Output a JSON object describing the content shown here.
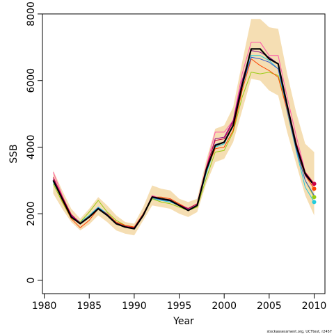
{
  "chart_data": {
    "type": "line",
    "xlabel": "Year",
    "ylabel": "SSB",
    "xlim": [
      1979.8,
      2011.2
    ],
    "ylim": [
      -400,
      8000
    ],
    "xticks": [
      1980,
      1985,
      1990,
      1995,
      2000,
      2005,
      2010
    ],
    "yticks": [
      0,
      2000,
      4000,
      6000,
      8000
    ],
    "grid": false,
    "legend": "none",
    "credit": "stockassessment.org, UCTtest, r2457",
    "x": [
      1981,
      1982,
      1983,
      1984,
      1985,
      1986,
      1987,
      1988,
      1989,
      1990,
      1991,
      1992,
      1993,
      1994,
      1995,
      1996,
      1997,
      1998,
      1999,
      2000,
      2001,
      2002,
      2003,
      2004,
      2005,
      2006,
      2007,
      2008,
      2009,
      2010
    ],
    "band": {
      "color": "#f5deb3",
      "lower": [
        2600,
        2150,
        1750,
        1500,
        1680,
        1950,
        1750,
        1500,
        1400,
        1350,
        1800,
        2250,
        2200,
        2150,
        2000,
        1900,
        2050,
        2900,
        3550,
        3650,
        4150,
        5100,
        6050,
        6000,
        5700,
        5550,
        4450,
        3500,
        2550,
        1950
      ],
      "upper": [
        3300,
        2700,
        2150,
        1850,
        2150,
        2500,
        2250,
        1950,
        1750,
        1700,
        2200,
        2850,
        2750,
        2700,
        2450,
        2350,
        2450,
        3600,
        4550,
        4650,
        5200,
        6550,
        7850,
        7850,
        7600,
        7550,
        6200,
        5050,
        4100,
        3850
      ]
    },
    "series": [
      {
        "color": "#22ccdd",
        "width": 1.0,
        "values": [
          2950,
          2450,
          1950,
          1750,
          1950,
          2200,
          2000,
          1700,
          1600,
          1550,
          2000,
          2450,
          2400,
          2350,
          2250,
          2100,
          2250,
          3200,
          4000,
          4100,
          4650,
          5800,
          6750,
          6750,
          6600,
          6350,
          5050,
          3900,
          2800,
          2350
        ],
        "end_marker": true
      },
      {
        "color": "#99cc11",
        "width": 1.0,
        "values": [
          2900,
          2350,
          1850,
          1750,
          2050,
          2400,
          2050,
          1800,
          1650,
          1600,
          1950,
          2450,
          2350,
          2300,
          2200,
          2100,
          2200,
          3050,
          3850,
          3900,
          4450,
          5500,
          6250,
          6200,
          6250,
          6150,
          5150,
          3950,
          3000,
          2500
        ],
        "end_marker": true
      },
      {
        "color": "#ff4400",
        "width": 1.0,
        "values": [
          3000,
          2400,
          1850,
          1580,
          1800,
          2150,
          2000,
          1750,
          1650,
          1600,
          2000,
          2500,
          2500,
          2450,
          2300,
          2150,
          2300,
          3300,
          3950,
          4000,
          4500,
          5700,
          6650,
          6450,
          6300,
          6100,
          5100,
          3950,
          3150,
          2750
        ],
        "end_marker": true
      },
      {
        "color": "#ff55aa",
        "width": 1.0,
        "values": [
          3250,
          2550,
          1950,
          1700,
          1900,
          2150,
          1950,
          1700,
          1600,
          1550,
          1950,
          2550,
          2450,
          2400,
          2250,
          2150,
          2300,
          3400,
          4450,
          4450,
          4800,
          6200,
          7150,
          7150,
          6750,
          6750,
          5500,
          4350,
          3250,
          2900
        ],
        "end_marker": true
      },
      {
        "color": "#3355cc",
        "width": 1.0,
        "values": [
          2980,
          2420,
          1900,
          1720,
          1920,
          2180,
          1980,
          1720,
          1620,
          1580,
          1980,
          2480,
          2420,
          2380,
          2230,
          2120,
          2260,
          3250,
          4080,
          4150,
          4650,
          5850,
          6700,
          6650,
          6550,
          6350,
          5150,
          3950,
          3000,
          2550
        ],
        "end_marker": false
      },
      {
        "color": "#880088",
        "width": 1.0,
        "values": [
          3050,
          2500,
          1950,
          1700,
          1900,
          2150,
          1950,
          1700,
          1600,
          1550,
          1950,
          2500,
          2450,
          2400,
          2250,
          2150,
          2300,
          3350,
          4250,
          4300,
          4800,
          6000,
          6900,
          6850,
          6700,
          6500,
          5250,
          4050,
          3150,
          2850
        ],
        "end_marker": false
      },
      {
        "color": "#cc0044",
        "width": 1.0,
        "values": [
          3100,
          2520,
          1980,
          1720,
          1920,
          2160,
          1960,
          1720,
          1620,
          1580,
          1980,
          2520,
          2460,
          2420,
          2270,
          2160,
          2300,
          3380,
          4200,
          4250,
          4750,
          5900,
          6950,
          6950,
          6650,
          6500,
          5300,
          4150,
          3250,
          2900
        ],
        "end_marker": true
      },
      {
        "color": "#000000",
        "width": 2.2,
        "values": [
          3000,
          2450,
          1900,
          1700,
          1900,
          2150,
          1950,
          1700,
          1600,
          1550,
          1950,
          2500,
          2450,
          2400,
          2250,
          2100,
          2250,
          3300,
          4050,
          4150,
          4650,
          5850,
          6950,
          6950,
          6650,
          6500,
          5250,
          4050,
          3200,
          2850
        ],
        "end_marker": false
      }
    ]
  }
}
